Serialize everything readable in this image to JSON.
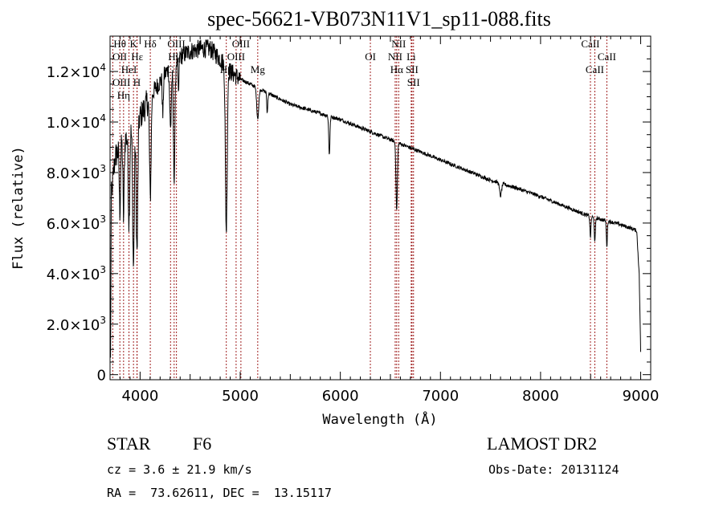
{
  "chart_data": {
    "type": "line",
    "title": "spec-56621-VB073N11V1_sp11-088.fits",
    "xlabel": "Wavelength (Å)",
    "ylabel": "Flux (relative)",
    "xlim": [
      3700,
      9100
    ],
    "ylim": [
      -200,
      13400
    ],
    "xticks": [
      4000,
      5000,
      6000,
      7000,
      8000,
      9000
    ],
    "yticks": [
      {
        "value": 0,
        "label": "0"
      },
      {
        "value": 2000,
        "label": "2.0×10",
        "exp": "3"
      },
      {
        "value": 4000,
        "label": "4.0×10",
        "exp": "3"
      },
      {
        "value": 6000,
        "label": "6.0×10",
        "exp": "3"
      },
      {
        "value": 8000,
        "label": "8.0×10",
        "exp": "3"
      },
      {
        "value": 10000,
        "label": "1.0×10",
        "exp": "4"
      },
      {
        "value": 12000,
        "label": "1.2×10",
        "exp": "4"
      }
    ],
    "continuum": [
      [
        3705,
        500
      ],
      [
        3712,
        7000
      ],
      [
        3750,
        8600
      ],
      [
        3800,
        9000
      ],
      [
        3900,
        9600
      ],
      [
        4000,
        10200
      ],
      [
        4100,
        11000
      ],
      [
        4200,
        11600
      ],
      [
        4300,
        12200
      ],
      [
        4400,
        12600
      ],
      [
        4500,
        12800
      ],
      [
        4600,
        12900
      ],
      [
        4700,
        12900
      ],
      [
        4800,
        12500
      ],
      [
        4900,
        12000
      ],
      [
        5000,
        11700
      ],
      [
        5250,
        11200
      ],
      [
        5500,
        10700
      ],
      [
        5750,
        10400
      ],
      [
        6000,
        10100
      ],
      [
        6250,
        9700
      ],
      [
        6500,
        9300
      ],
      [
        6750,
        8900
      ],
      [
        7000,
        8500
      ],
      [
        7250,
        8100
      ],
      [
        7500,
        7700
      ],
      [
        7750,
        7400
      ],
      [
        8000,
        7050
      ],
      [
        8250,
        6650
      ],
      [
        8500,
        6250
      ],
      [
        8750,
        6000
      ],
      [
        8900,
        5800
      ],
      [
        8960,
        5700
      ],
      [
        8985,
        4000
      ],
      [
        9000,
        900
      ]
    ],
    "absorption": [
      [
        3798,
        2500,
        6
      ],
      [
        3835,
        3000,
        6
      ],
      [
        3889,
        3500,
        7
      ],
      [
        3934,
        5500,
        8
      ],
      [
        3969,
        5200,
        8
      ],
      [
        4102,
        4000,
        8
      ],
      [
        4227,
        1500,
        5
      ],
      [
        4304,
        2500,
        8
      ],
      [
        4340,
        4500,
        8
      ],
      [
        4383,
        1500,
        5
      ],
      [
        4861,
        6500,
        9
      ],
      [
        5175,
        1200,
        10
      ],
      [
        5270,
        800,
        5
      ],
      [
        5890,
        1500,
        6
      ],
      [
        6563,
        2700,
        7
      ],
      [
        7600,
        500,
        10
      ],
      [
        8498,
        800,
        5
      ],
      [
        8542,
        1000,
        5
      ],
      [
        8662,
        1000,
        5
      ]
    ],
    "noise_amplitude": 250,
    "lines": [
      {
        "label": "Hθ",
        "wave": 3798,
        "row": 0
      },
      {
        "label": "K",
        "wave": 3934,
        "row": 0
      },
      {
        "label": "Hδ",
        "wave": 4102,
        "row": 0
      },
      {
        "label": "OIII",
        "wave": 4363,
        "row": 0
      },
      {
        "label": "OIII",
        "wave": 5007,
        "row": 0
      },
      {
        "label": "OII",
        "wave": 3727,
        "row": 1
      },
      {
        "label": "HeI",
        "wave": 3889,
        "row": 1
      },
      {
        "label": "Hε",
        "wave": 3970,
        "row": 1
      },
      {
        "label": "Hγ",
        "wave": 4340,
        "row": 1
      },
      {
        "label": "OIII",
        "wave": 4959,
        "row": 1
      },
      {
        "label": "OIII",
        "wave": 3727,
        "row": 2
      },
      {
        "label": "Hη",
        "wave": 3835,
        "row": 2
      },
      {
        "label": "H",
        "wave": 3969,
        "row": 2
      },
      {
        "label": "G",
        "wave": 4304,
        "row": 2
      },
      {
        "label": "Hβ",
        "wave": 4861,
        "row": 2
      },
      {
        "label": "Mg",
        "wave": 5175,
        "row": 2
      },
      {
        "label": "NII",
        "wave": 6583,
        "row": 0
      },
      {
        "label": "Li",
        "wave": 6708,
        "row": 0
      },
      {
        "label": "OI",
        "wave": 6300,
        "row": 1
      },
      {
        "label": "NII",
        "wave": 6548,
        "row": 1
      },
      {
        "label": "SII",
        "wave": 6716,
        "row": 1
      },
      {
        "label": "Hα",
        "wave": 6563,
        "row": 2
      },
      {
        "label": "SII",
        "wave": 6731,
        "row": 2
      },
      {
        "label": "CaII",
        "wave": 8498,
        "row": 0
      },
      {
        "label": "CaII",
        "wave": 8662,
        "row": 1
      },
      {
        "label": "CaII",
        "wave": 8542,
        "row": 2
      }
    ],
    "line_color": "#a02020",
    "legend": "none",
    "grid": false
  },
  "info": {
    "object_class": "STAR",
    "subclass": "F6",
    "survey": "LAMOST DR2",
    "redshift": "cz = 3.6 ± 21.9 km/s",
    "obs_date": "Obs-Date: 20131124",
    "coords": "RA =  73.62611, DEC =  13.15117"
  }
}
